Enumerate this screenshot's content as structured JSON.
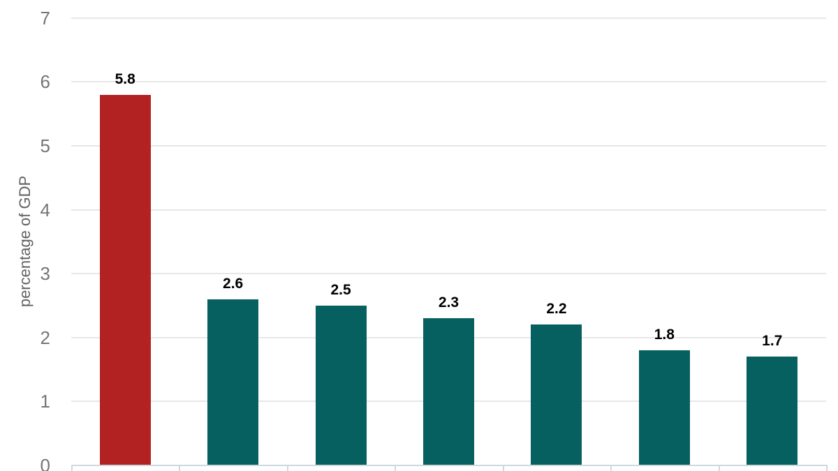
{
  "chart_data": {
    "type": "bar",
    "title": "",
    "xlabel": "",
    "ylabel": "percentage of GDP",
    "ylim": [
      0,
      7
    ],
    "yticks": [
      0,
      1,
      2,
      3,
      4,
      5,
      6,
      7
    ],
    "grid": true,
    "legend": false,
    "categories": [
      "",
      "",
      "",
      "",
      "",
      "",
      ""
    ],
    "values": [
      5.8,
      2.6,
      2.5,
      2.3,
      2.2,
      1.8,
      1.7
    ],
    "data_labels": [
      "5.8",
      "2.6",
      "2.5",
      "2.3",
      "2.2",
      "1.8",
      "1.7"
    ],
    "bar_colors": [
      "#b22222",
      "#06605f",
      "#06605f",
      "#06605f",
      "#06605f",
      "#06605f",
      "#06605f"
    ]
  },
  "colors": {
    "highlight_bar": "#b22222",
    "default_bar": "#06605f",
    "gridline": "#e7e7e7",
    "axis_line": "#cfd8dc",
    "tick_label": "#757575",
    "axis_title": "#616161",
    "data_label": "#000000",
    "background": "#ffffff"
  }
}
